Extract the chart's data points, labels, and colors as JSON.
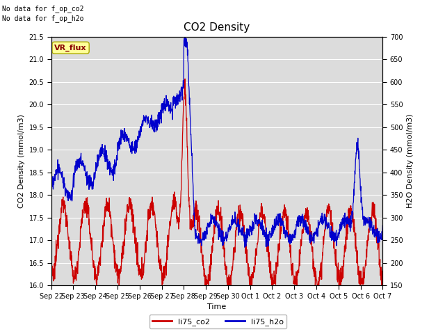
{
  "title": "CO2 Density",
  "xlabel": "Time",
  "ylabel_left": "CO2 Density (mmol/m3)",
  "ylabel_right": "H2O Density (mmol/m3)",
  "ylim_left": [
    16.0,
    21.5
  ],
  "ylim_right": [
    150,
    700
  ],
  "yticks_left": [
    16.0,
    16.5,
    17.0,
    17.5,
    18.0,
    18.5,
    19.0,
    19.5,
    20.0,
    20.5,
    21.0,
    21.5
  ],
  "yticks_right": [
    150,
    200,
    250,
    300,
    350,
    400,
    450,
    500,
    550,
    600,
    650,
    700
  ],
  "xtick_labels": [
    "Sep 22",
    "Sep 23",
    "Sep 24",
    "Sep 25",
    "Sep 26",
    "Sep 27",
    "Sep 28",
    "Sep 29",
    "Sep 30",
    "Oct 1",
    "Oct 2",
    "Oct 3",
    "Oct 4",
    "Oct 5",
    "Oct 6",
    "Oct 7"
  ],
  "no_data_text": "No data for f_op_co2\nNo data for f_op_h2o",
  "vr_flux_label": "VR_flux",
  "legend_labels": [
    "li75_co2",
    "li75_h2o"
  ],
  "legend_colors": [
    "#cc0000",
    "#0000cc"
  ],
  "line_color_co2": "#cc0000",
  "line_color_h2o": "#0000cc",
  "bg_color": "#dcdcdc",
  "fig_bg": "#ffffff",
  "title_fontsize": 11,
  "axis_fontsize": 8,
  "tick_fontsize": 7,
  "vr_box_facecolor": "#ffff99",
  "vr_box_edgecolor": "#aaa800",
  "vr_text_color": "#880000"
}
